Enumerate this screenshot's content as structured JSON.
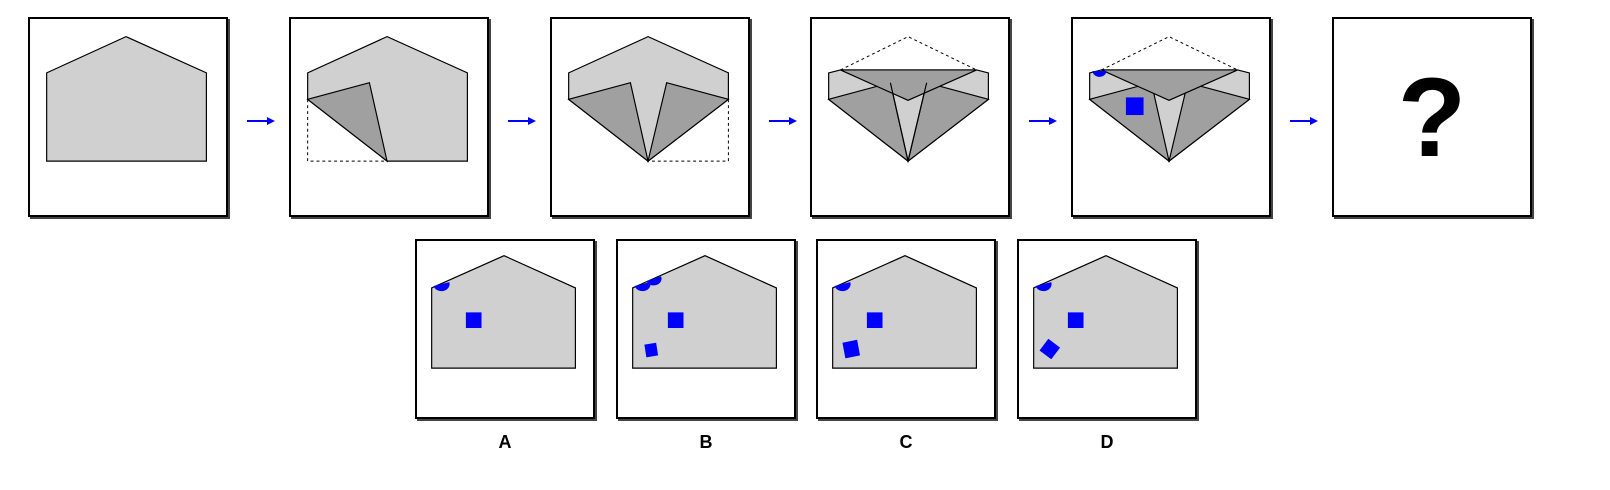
{
  "question_mark": "?",
  "options": [
    {
      "label": "A"
    },
    {
      "label": "B"
    },
    {
      "label": "C"
    },
    {
      "label": "D"
    }
  ],
  "colors": {
    "paper": "#d0d0d0",
    "fold": "#a0a0a0",
    "mark": "#0000ff",
    "arrow": "#0000ff",
    "outline": "#000000"
  }
}
